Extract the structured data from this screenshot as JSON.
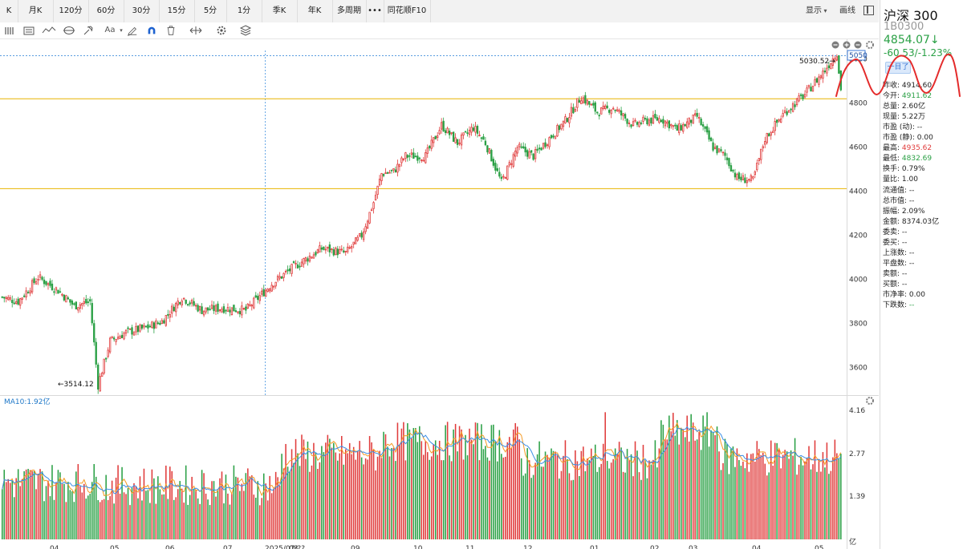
{
  "tabs": [
    {
      "label": "K"
    },
    {
      "label": "月K"
    },
    {
      "label": "120分"
    },
    {
      "label": "60分"
    },
    {
      "label": "30分"
    },
    {
      "label": "15分"
    },
    {
      "label": "5分"
    },
    {
      "label": "1分"
    },
    {
      "label": "季K"
    },
    {
      "label": "年K"
    },
    {
      "label": "多周期"
    },
    {
      "label": "•••"
    },
    {
      "label": "同花顺F10"
    }
  ],
  "header_right": {
    "display_label": "显示",
    "draw_label": "画线"
  },
  "toolbar": {
    "text_tool_label": "Aa",
    "icons": [
      "bars-icon",
      "list-icon",
      "trend-icon",
      "cycle-icon",
      "hammer-icon",
      "text-icon",
      "pen-icon",
      "magnet-icon",
      "trash-icon",
      "arrows-icon",
      "gear-icon",
      "layers-icon"
    ]
  },
  "quote": {
    "name": "沪深 300",
    "code": "1B0300",
    "price": "4854.07↓",
    "change": "-60.53/-1.23%",
    "button_label": "一目了",
    "rows": [
      {
        "label": "昨收:",
        "value": "4914.60",
        "tone": "normal"
      },
      {
        "label": "今开:",
        "value": "4911.62",
        "tone": "green"
      },
      {
        "label": "总量:",
        "value": "2.60亿",
        "tone": "normal"
      },
      {
        "label": "现量:",
        "value": "5.22万",
        "tone": "normal"
      },
      {
        "label": "市盈 (动):",
        "value": "--",
        "tone": "normal"
      },
      {
        "label": "市盈 (静):",
        "value": "0.00",
        "tone": "normal"
      },
      {
        "label": "最高:",
        "value": "4935.62",
        "tone": "red"
      },
      {
        "label": "最低:",
        "value": "4832.69",
        "tone": "green"
      },
      {
        "label": "换手:",
        "value": "0.79%",
        "tone": "normal"
      },
      {
        "label": "量比:",
        "value": "1.00",
        "tone": "normal"
      },
      {
        "label": "流通值:",
        "value": "--",
        "tone": "normal"
      },
      {
        "label": "总市值:",
        "value": "--",
        "tone": "normal"
      },
      {
        "label": "振幅:",
        "value": "2.09%",
        "tone": "normal"
      },
      {
        "label": "金额:",
        "value": "8374.03亿",
        "tone": "normal"
      },
      {
        "label": "委卖:",
        "value": "--",
        "tone": "normal"
      },
      {
        "label": "委买:",
        "value": "--",
        "tone": "normal"
      },
      {
        "label": "上涨数:",
        "value": "--",
        "tone": "normal"
      },
      {
        "label": "平盘数:",
        "value": "--",
        "tone": "normal"
      },
      {
        "label": "卖额:",
        "value": "--",
        "tone": "normal"
      },
      {
        "label": "买额:",
        "value": "--",
        "tone": "normal"
      },
      {
        "label": "市净率:",
        "value": "0.00",
        "tone": "normal"
      },
      {
        "label": "下跌数:",
        "value": "--",
        "tone": "green"
      }
    ]
  },
  "chart_data": [
    {
      "type": "candlestick",
      "y_ticks": [
        "5000",
        "4800",
        "4600",
        "4400",
        "4200",
        "4000",
        "3800",
        "3600"
      ],
      "ylim": [
        3475,
        5090
      ],
      "current_price_tag": "5050",
      "max_label": "5030.52→",
      "min_label": "←3514.12",
      "horizontal_levels": [
        4820,
        4412
      ],
      "x_ticks": [
        "04",
        "05",
        "06",
        "07",
        "2025/07/??",
        "08",
        "09",
        "10",
        "11",
        "12",
        "01",
        "02",
        "03",
        "04",
        "05"
      ],
      "ohlc_period_count": 245,
      "up_color": "#e03b3b",
      "down_color": "#2aa045",
      "level_line_color": "#e8b400",
      "crosshair_color": "#6aa9e6"
    },
    {
      "type": "bar",
      "ma_label": "MA10:1.92亿",
      "y_ticks": [
        "4.16",
        "2.77",
        "1.39"
      ],
      "unit_label": "亿",
      "ylim": [
        0,
        4.16
      ]
    }
  ]
}
